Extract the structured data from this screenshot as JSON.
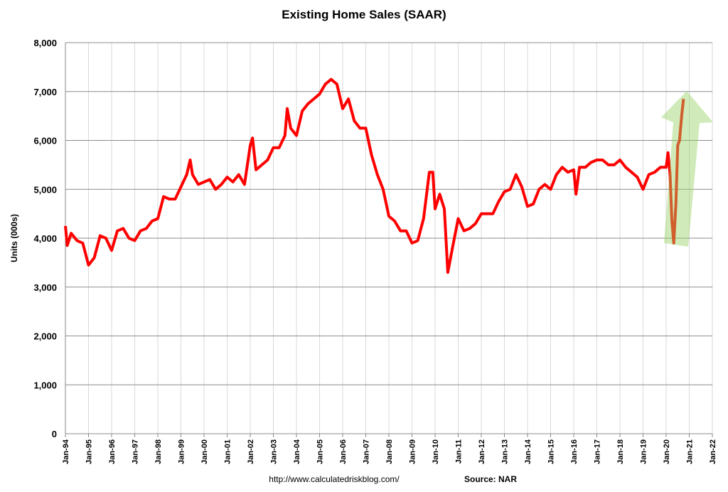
{
  "chart_data": {
    "type": "line",
    "title": "Existing Home Sales (SAAR)",
    "y_label": "Units (000s)",
    "footer_url": "http://www.calculatedriskblog.com/",
    "footer_source": "Source: NAR",
    "color": "#ff0000",
    "grid": true,
    "xlim": [
      1994,
      2022
    ],
    "ylim": [
      0,
      8000
    ],
    "yticks": [
      0,
      {
        "value": 1000,
        "label": "1,000"
      },
      {
        "value": 2000,
        "label": "2,000"
      },
      {
        "value": 3000,
        "label": "3,000"
      },
      {
        "value": 4000,
        "label": "4,000"
      },
      {
        "value": 5000,
        "label": "5,000"
      },
      {
        "value": 6000,
        "label": "6,000"
      },
      {
        "value": 7000,
        "label": "7,000"
      },
      {
        "value": 8000,
        "label": "8,000"
      }
    ],
    "xticks": [
      {
        "value": 1994,
        "label": "Jan-94"
      },
      {
        "value": 1995,
        "label": "Jan-95"
      },
      {
        "value": 1996,
        "label": "Jan-96"
      },
      {
        "value": 1997,
        "label": "Jan-97"
      },
      {
        "value": 1998,
        "label": "Jan-98"
      },
      {
        "value": 1999,
        "label": "Jan-99"
      },
      {
        "value": 2000,
        "label": "Jan-00"
      },
      {
        "value": 2001,
        "label": "Jan-01"
      },
      {
        "value": 2002,
        "label": "Jan-02"
      },
      {
        "value": 2003,
        "label": "Jan-03"
      },
      {
        "value": 2004,
        "label": "Jan-04"
      },
      {
        "value": 2005,
        "label": "Jan-05"
      },
      {
        "value": 2006,
        "label": "Jan-06"
      },
      {
        "value": 2007,
        "label": "Jan-07"
      },
      {
        "value": 2008,
        "label": "Jan-08"
      },
      {
        "value": 2009,
        "label": "Jan-09"
      },
      {
        "value": 2010,
        "label": "Jan-10"
      },
      {
        "value": 2011,
        "label": "Jan-11"
      },
      {
        "value": 2012,
        "label": "Jan-12"
      },
      {
        "value": 2013,
        "label": "Jan-13"
      },
      {
        "value": 2014,
        "label": "Jan-14"
      },
      {
        "value": 2015,
        "label": "Jan-15"
      },
      {
        "value": 2016,
        "label": "Jan-16"
      },
      {
        "value": 2017,
        "label": "Jan-17"
      },
      {
        "value": 2018,
        "label": "Jan-18"
      },
      {
        "value": 2019,
        "label": "Jan-19"
      },
      {
        "value": 2020,
        "label": "Jan-20"
      },
      {
        "value": 2021,
        "label": "Jan-21"
      },
      {
        "value": 2022,
        "label": "Jan-22"
      }
    ],
    "x": [
      1994.0,
      1994.08,
      1994.25,
      1994.5,
      1994.75,
      1995.0,
      1995.25,
      1995.5,
      1995.75,
      1996.0,
      1996.25,
      1996.5,
      1996.75,
      1997.0,
      1997.25,
      1997.5,
      1997.75,
      1998.0,
      1998.25,
      1998.5,
      1998.75,
      1999.0,
      1999.25,
      1999.4,
      1999.5,
      1999.75,
      2000.0,
      2000.25,
      2000.5,
      2000.75,
      2001.0,
      2001.25,
      2001.5,
      2001.75,
      2002.0,
      2002.1,
      2002.25,
      2002.5,
      2002.75,
      2003.0,
      2003.25,
      2003.5,
      2003.6,
      2003.75,
      2004.0,
      2004.25,
      2004.5,
      2004.75,
      2005.0,
      2005.25,
      2005.5,
      2005.75,
      2006.0,
      2006.25,
      2006.5,
      2006.75,
      2007.0,
      2007.25,
      2007.5,
      2007.75,
      2008.0,
      2008.25,
      2008.5,
      2008.75,
      2009.0,
      2009.25,
      2009.5,
      2009.75,
      2009.9,
      2010.0,
      2010.2,
      2010.4,
      2010.55,
      2010.75,
      2011.0,
      2011.25,
      2011.5,
      2011.75,
      2012.0,
      2012.25,
      2012.5,
      2012.75,
      2013.0,
      2013.25,
      2013.5,
      2013.75,
      2014.0,
      2014.25,
      2014.5,
      2014.75,
      2015.0,
      2015.25,
      2015.5,
      2015.75,
      2016.0,
      2016.1,
      2016.25,
      2016.5,
      2016.75,
      2017.0,
      2017.25,
      2017.5,
      2017.75,
      2018.0,
      2018.25,
      2018.5,
      2018.75,
      2019.0,
      2019.25,
      2019.5,
      2019.75,
      2020.0,
      2020.08,
      2020.17,
      2020.25,
      2020.33,
      2020.42,
      2020.5,
      2020.58,
      2020.67,
      2020.75
    ],
    "values": [
      4250,
      3850,
      4100,
      3950,
      3900,
      3450,
      3600,
      4050,
      4000,
      3750,
      4150,
      4200,
      4000,
      3950,
      4150,
      4200,
      4350,
      4400,
      4850,
      4800,
      4800,
      5050,
      5300,
      5600,
      5300,
      5100,
      5150,
      5200,
      5000,
      5100,
      5250,
      5150,
      5300,
      5100,
      5900,
      6050,
      5400,
      5500,
      5600,
      5850,
      5850,
      6100,
      6650,
      6250,
      6100,
      6600,
      6750,
      6850,
      6950,
      7150,
      7250,
      7150,
      6650,
      6850,
      6400,
      6250,
      6250,
      5700,
      5300,
      5000,
      4450,
      4350,
      4150,
      4150,
      3900,
      3950,
      4400,
      5350,
      5350,
      4600,
      4900,
      4600,
      3300,
      3800,
      4400,
      4150,
      4200,
      4300,
      4500,
      4500,
      4500,
      4750,
      4950,
      5000,
      5300,
      5050,
      4650,
      4700,
      5000,
      5100,
      5000,
      5300,
      5450,
      5350,
      5400,
      4900,
      5450,
      5450,
      5550,
      5600,
      5600,
      5500,
      5500,
      5600,
      5450,
      5350,
      5250,
      5000,
      5300,
      5350,
      5450,
      5450,
      5750,
      5300,
      4350,
      3900,
      4700,
      5900,
      6000,
      6500,
      6850
    ]
  }
}
